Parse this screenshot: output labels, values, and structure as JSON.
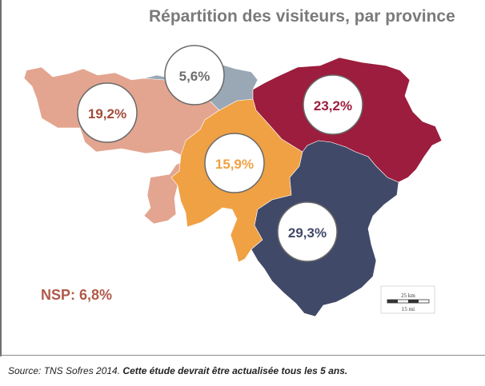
{
  "title": "Répartition des visiteurs, par province",
  "regions": [
    {
      "id": "hainaut",
      "value": "19,2%",
      "fill": "#e3a590",
      "text_color": "#a24c3a"
    },
    {
      "id": "brabant-wallon",
      "value": "5,6%",
      "fill": "#9aa8b5",
      "text_color": "#6e6e6e"
    },
    {
      "id": "liege",
      "value": "23,2%",
      "fill": "#9c1d3d",
      "text_color": "#9c1d3d"
    },
    {
      "id": "namur",
      "value": "15,9%",
      "fill": "#f0a143",
      "text_color": "#f0a143"
    },
    {
      "id": "luxembourg",
      "value": "29,3%",
      "fill": "#414968",
      "text_color": "#414968"
    }
  ],
  "nsp": "NSP: 6,8%",
  "scale": {
    "km": "25 km",
    "mi": "15 mi"
  },
  "source": {
    "prefix": "Source: TNS Sofres 2014.",
    "note": "Cette étude devrait être actualisée tous les 5 ans."
  }
}
